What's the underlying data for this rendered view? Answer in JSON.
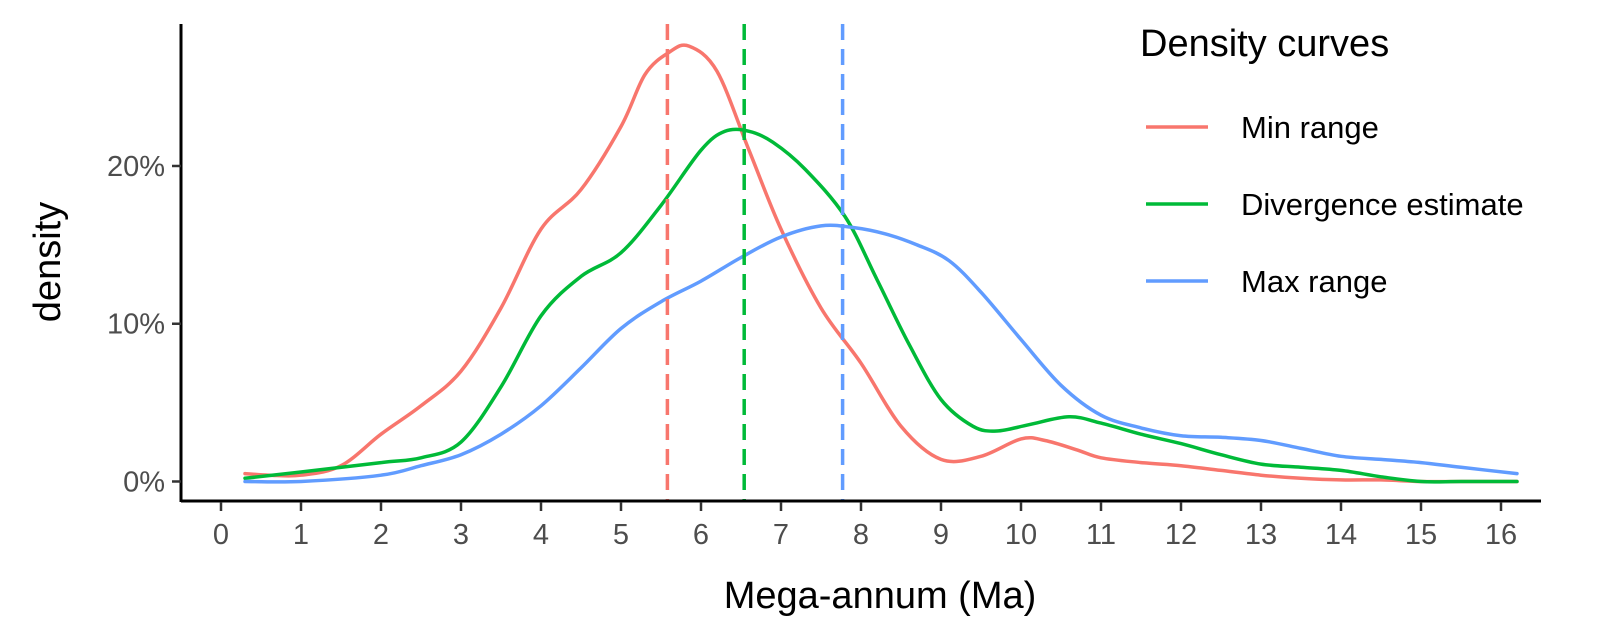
{
  "chart_data": {
    "type": "line",
    "title": "",
    "xlabel": "Mega-annum (Ma)",
    "ylabel": "density",
    "xlim": [
      -0.5,
      16.5
    ],
    "ylim": [
      -0.013,
      0.29
    ],
    "x_ticks": [
      0,
      1,
      2,
      3,
      4,
      5,
      6,
      7,
      8,
      9,
      10,
      11,
      12,
      13,
      14,
      15,
      16
    ],
    "y_ticks": [
      {
        "value": 0,
        "label": "0%"
      },
      {
        "value": 0.1,
        "label": "10%"
      },
      {
        "value": 0.2,
        "label": "20%"
      }
    ],
    "grid": false,
    "legend": {
      "title": "Density curves",
      "position": "top-right"
    },
    "series": [
      {
        "name": "Min range",
        "color": "#F8766D",
        "mean_line": 5.58,
        "x": [
          0.3,
          0.6,
          1.0,
          1.5,
          2.0,
          2.5,
          3.0,
          3.5,
          4.0,
          4.5,
          5.0,
          5.3,
          5.6,
          5.85,
          6.2,
          6.6,
          7.0,
          7.5,
          8.0,
          8.5,
          9.0,
          9.5,
          10.0,
          10.3,
          10.7,
          11.0,
          11.5,
          12.0,
          12.5,
          13.0,
          13.5,
          14.0,
          14.5,
          15.0,
          15.5,
          16.2
        ],
        "y": [
          0.005,
          0.004,
          0.004,
          0.01,
          0.03,
          0.048,
          0.07,
          0.11,
          0.16,
          0.185,
          0.225,
          0.258,
          0.272,
          0.276,
          0.26,
          0.21,
          0.16,
          0.11,
          0.075,
          0.035,
          0.014,
          0.016,
          0.027,
          0.026,
          0.02,
          0.015,
          0.012,
          0.01,
          0.007,
          0.004,
          0.002,
          0.001,
          0.001,
          0.0,
          0.0,
          0.0
        ]
      },
      {
        "name": "Divergence estimate",
        "color": "#00BA38",
        "mean_line": 6.54,
        "x": [
          0.3,
          1.0,
          2.0,
          2.5,
          3.0,
          3.5,
          4.0,
          4.5,
          5.0,
          5.5,
          6.0,
          6.3,
          6.6,
          6.9,
          7.3,
          7.8,
          8.2,
          8.6,
          9.0,
          9.4,
          9.7,
          10.1,
          10.6,
          11.0,
          11.5,
          12.0,
          12.5,
          13.0,
          13.5,
          14.0,
          14.5,
          15.0,
          15.5,
          16.2
        ],
        "y": [
          0.002,
          0.006,
          0.012,
          0.015,
          0.025,
          0.06,
          0.105,
          0.13,
          0.145,
          0.175,
          0.21,
          0.222,
          0.222,
          0.215,
          0.198,
          0.168,
          0.128,
          0.087,
          0.052,
          0.035,
          0.032,
          0.036,
          0.041,
          0.037,
          0.03,
          0.024,
          0.017,
          0.011,
          0.009,
          0.007,
          0.003,
          0.0,
          0.0,
          0.0
        ]
      },
      {
        "name": "Max range",
        "color": "#619CFF",
        "mean_line": 7.77,
        "x": [
          0.3,
          1.0,
          2.0,
          2.5,
          3.0,
          3.5,
          4.0,
          4.5,
          5.0,
          5.5,
          6.0,
          6.5,
          7.0,
          7.5,
          7.9,
          8.3,
          8.7,
          9.1,
          9.5,
          10.0,
          10.5,
          11.0,
          11.5,
          12.0,
          12.5,
          13.0,
          13.5,
          14.0,
          14.5,
          15.0,
          15.5,
          16.2
        ],
        "y": [
          0.0,
          0.0,
          0.004,
          0.01,
          0.017,
          0.03,
          0.048,
          0.072,
          0.097,
          0.114,
          0.127,
          0.142,
          0.155,
          0.162,
          0.161,
          0.157,
          0.15,
          0.14,
          0.12,
          0.09,
          0.061,
          0.042,
          0.034,
          0.029,
          0.028,
          0.026,
          0.021,
          0.016,
          0.014,
          0.012,
          0.009,
          0.005
        ]
      }
    ]
  }
}
